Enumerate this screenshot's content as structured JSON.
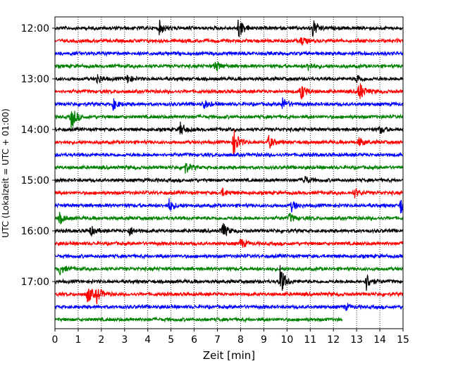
{
  "chart_data": {
    "type": "line",
    "title": "",
    "xlabel": "Zeit  [min]",
    "ylabel": "UTC (Lokalzeit = UTC + 01:00)",
    "xlim": [
      0,
      15
    ],
    "x_ticks": [
      "0",
      "1",
      "2",
      "3",
      "4",
      "5",
      "6",
      "7",
      "8",
      "9",
      "10",
      "11",
      "12",
      "13",
      "14",
      "15"
    ],
    "y_ticks": [
      "12:00",
      "13:00",
      "14:00",
      "15:00",
      "16:00",
      "17:00"
    ],
    "ylim": [
      "12:00",
      "17:53"
    ],
    "grid": "vertical dotted lines at each minute",
    "legend": "none",
    "colors": [
      "#000000",
      "#ff0000",
      "#0000ff",
      "#008000"
    ],
    "traces": [
      {
        "start": "12:00",
        "color": "#000000",
        "end_min": 15,
        "events": [
          {
            "t": 4.5,
            "amp": 0.45
          },
          {
            "t": 7.9,
            "amp": 0.7
          },
          {
            "t": 11.1,
            "amp": 0.6
          }
        ]
      },
      {
        "start": "12:15",
        "color": "#ff0000",
        "end_min": 15,
        "events": [
          {
            "t": 10.6,
            "amp": 0.3
          }
        ]
      },
      {
        "start": "12:30",
        "color": "#0000ff",
        "end_min": 15,
        "events": []
      },
      {
        "start": "12:45",
        "color": "#008000",
        "end_min": 15,
        "events": [
          {
            "t": 6.9,
            "amp": 0.4
          },
          {
            "t": 10.9,
            "amp": 0.3
          }
        ]
      },
      {
        "start": "13:00",
        "color": "#000000",
        "end_min": 15,
        "events": [
          {
            "t": 1.8,
            "amp": 0.35
          },
          {
            "t": 3.1,
            "amp": 0.3
          },
          {
            "t": 13.0,
            "amp": 0.3
          }
        ]
      },
      {
        "start": "13:15",
        "color": "#ff0000",
        "end_min": 15,
        "events": [
          {
            "t": 10.6,
            "amp": 0.55
          },
          {
            "t": 13.1,
            "amp": 0.7
          }
        ]
      },
      {
        "start": "13:30",
        "color": "#0000ff",
        "end_min": 15,
        "events": [
          {
            "t": 2.5,
            "amp": 0.35
          },
          {
            "t": 6.4,
            "amp": 0.3
          },
          {
            "t": 9.8,
            "amp": 0.4
          }
        ]
      },
      {
        "start": "13:45",
        "color": "#008000",
        "end_min": 15,
        "events": [
          {
            "t": 0.7,
            "amp": 0.8
          }
        ]
      },
      {
        "start": "14:00",
        "color": "#000000",
        "end_min": 15,
        "events": [
          {
            "t": 5.4,
            "amp": 0.45
          },
          {
            "t": 14.0,
            "amp": 0.25
          }
        ]
      },
      {
        "start": "14:15",
        "color": "#ff0000",
        "end_min": 15,
        "events": [
          {
            "t": 7.7,
            "amp": 0.9
          },
          {
            "t": 9.2,
            "amp": 0.45
          },
          {
            "t": 13.1,
            "amp": 0.3
          }
        ]
      },
      {
        "start": "14:30",
        "color": "#0000ff",
        "end_min": 15,
        "events": []
      },
      {
        "start": "14:45",
        "color": "#008000",
        "end_min": 15,
        "events": [
          {
            "t": 5.6,
            "amp": 0.4
          }
        ]
      },
      {
        "start": "15:00",
        "color": "#000000",
        "end_min": 15,
        "events": [
          {
            "t": 10.7,
            "amp": 0.35
          }
        ]
      },
      {
        "start": "15:15",
        "color": "#ff0000",
        "end_min": 15,
        "events": [
          {
            "t": 7.2,
            "amp": 0.25
          },
          {
            "t": 12.9,
            "amp": 0.3
          }
        ]
      },
      {
        "start": "15:30",
        "color": "#0000ff",
        "end_min": 15,
        "events": [
          {
            "t": 4.9,
            "amp": 0.45
          },
          {
            "t": 10.2,
            "amp": 0.35
          },
          {
            "t": 14.9,
            "amp": 0.6
          }
        ]
      },
      {
        "start": "15:45",
        "color": "#008000",
        "end_min": 15,
        "events": [
          {
            "t": 0.2,
            "amp": 0.35
          },
          {
            "t": 10.1,
            "amp": 0.3
          }
        ]
      },
      {
        "start": "16:00",
        "color": "#000000",
        "end_min": 15,
        "events": [
          {
            "t": 1.5,
            "amp": 0.35
          },
          {
            "t": 3.2,
            "amp": 0.3
          },
          {
            "t": 7.2,
            "amp": 0.6
          }
        ]
      },
      {
        "start": "16:15",
        "color": "#ff0000",
        "end_min": 15,
        "events": [
          {
            "t": 8.0,
            "amp": 0.35
          }
        ]
      },
      {
        "start": "16:30",
        "color": "#0000ff",
        "end_min": 15,
        "events": []
      },
      {
        "start": "16:45",
        "color": "#008000",
        "end_min": 15,
        "events": [
          {
            "t": 0.2,
            "amp": 0.35
          }
        ]
      },
      {
        "start": "17:00",
        "color": "#000000",
        "end_min": 15,
        "events": [
          {
            "t": 9.7,
            "amp": 1.0
          },
          {
            "t": 13.4,
            "amp": 0.6
          }
        ]
      },
      {
        "start": "17:15",
        "color": "#ff0000",
        "end_min": 15,
        "events": [
          {
            "t": 1.4,
            "amp": 0.6
          },
          {
            "t": 1.8,
            "amp": 0.5
          }
        ]
      },
      {
        "start": "17:30",
        "color": "#0000ff",
        "end_min": 15,
        "events": [
          {
            "t": 12.5,
            "amp": 0.2
          }
        ]
      },
      {
        "start": "17:45",
        "color": "#008000",
        "end_min": 12.4,
        "events": []
      }
    ]
  }
}
